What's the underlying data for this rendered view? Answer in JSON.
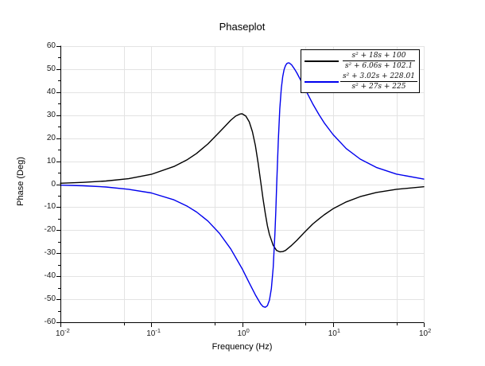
{
  "title": "Phaseplot",
  "xlabel": "Frequency (Hz)",
  "ylabel": "Phase (Deg)",
  "colors": {
    "background": "#ffffff",
    "grid": "#e3e3e3",
    "axis": "#000000",
    "series1": "#000000",
    "series2": "#0000ee"
  },
  "axes": {
    "x_scale": "log",
    "x_ticks": [
      {
        "value": 0.01,
        "label_base": "10",
        "label_exp": "-2"
      },
      {
        "value": 0.1,
        "label_base": "10",
        "label_exp": "-1"
      },
      {
        "value": 1,
        "label_base": "10",
        "label_exp": "0"
      },
      {
        "value": 10,
        "label_base": "10",
        "label_exp": "1"
      },
      {
        "value": 100,
        "label_base": "10",
        "label_exp": "2"
      }
    ],
    "x_minor_ticks": [
      0.05,
      0.5,
      5,
      50
    ],
    "y_ticks": [
      -60,
      -50,
      -40,
      -30,
      -20,
      -10,
      0,
      10,
      20,
      30,
      40,
      50,
      60
    ],
    "y_minor_ticks": [
      -55,
      -45,
      -35,
      -25,
      -15,
      -5,
      5,
      15,
      25,
      35,
      45,
      55
    ],
    "xlim": [
      0.01,
      100
    ],
    "ylim": [
      -60,
      60
    ]
  },
  "legend": {
    "entries": [
      {
        "numerator": "s² + 18s + 100",
        "denominator": "s² + 6.06s + 102.1",
        "color": "#000000"
      },
      {
        "numerator": "s² + 3.02s + 228.01",
        "denominator": "s² + 27s + 225",
        "color": "#0000ee"
      }
    ]
  },
  "chart_data": {
    "type": "line",
    "title": "Phaseplot",
    "xlabel": "Frequency (Hz)",
    "ylabel": "Phase (Deg)",
    "x_scale": "log",
    "xlim": [
      0.01,
      100
    ],
    "ylim": [
      -60,
      60
    ],
    "grid": true,
    "legend_position": "top-right",
    "series": [
      {
        "name": "(s²+18s+100)/(s²+6.06s+102.1)",
        "color": "#000000",
        "points": [
          [
            0.01,
            0.4
          ],
          [
            0.0178,
            0.8
          ],
          [
            0.0316,
            1.4
          ],
          [
            0.0562,
            2.4
          ],
          [
            0.1,
            4.3
          ],
          [
            0.178,
            7.7
          ],
          [
            0.25,
            10.7
          ],
          [
            0.316,
            13.4
          ],
          [
            0.42,
            17.5
          ],
          [
            0.562,
            22.6
          ],
          [
            0.65,
            25.2
          ],
          [
            0.75,
            27.8
          ],
          [
            0.85,
            29.6
          ],
          [
            0.95,
            30.5
          ],
          [
            1.0,
            30.6
          ],
          [
            1.1,
            29.6
          ],
          [
            1.2,
            27.1
          ],
          [
            1.3,
            22.8
          ],
          [
            1.4,
            16.8
          ],
          [
            1.5,
            9.3
          ],
          [
            1.6,
            1.3
          ],
          [
            1.7,
            -6.3
          ],
          [
            1.8,
            -12.8
          ],
          [
            1.9,
            -18.0
          ],
          [
            2.0,
            -21.9
          ],
          [
            2.2,
            -26.6
          ],
          [
            2.4,
            -28.8
          ],
          [
            2.6,
            -29.4
          ],
          [
            2.8,
            -29.3
          ],
          [
            3.0,
            -28.8
          ],
          [
            3.5,
            -26.6
          ],
          [
            4.0,
            -24.4
          ],
          [
            4.5,
            -22.3
          ],
          [
            5.0,
            -20.4
          ],
          [
            6.0,
            -17.3
          ],
          [
            7.0,
            -15.1
          ],
          [
            8.0,
            -13.3
          ],
          [
            10,
            -10.7
          ],
          [
            14,
            -7.7
          ],
          [
            20,
            -5.4
          ],
          [
            30,
            -3.6
          ],
          [
            50,
            -2.2
          ],
          [
            100,
            -1.1
          ]
        ]
      },
      {
        "name": "(s²+3.02s+228.01)/(s²+27s+225)",
        "color": "#0000ee",
        "points": [
          [
            0.01,
            -0.4
          ],
          [
            0.0178,
            -0.7
          ],
          [
            0.0316,
            -1.2
          ],
          [
            0.0562,
            -2.2
          ],
          [
            0.1,
            -3.8
          ],
          [
            0.178,
            -6.8
          ],
          [
            0.25,
            -9.6
          ],
          [
            0.316,
            -12.1
          ],
          [
            0.42,
            -16.0
          ],
          [
            0.562,
            -21.3
          ],
          [
            0.75,
            -28.1
          ],
          [
            1.0,
            -36.7
          ],
          [
            1.2,
            -42.9
          ],
          [
            1.4,
            -48.1
          ],
          [
            1.6,
            -52.0
          ],
          [
            1.7,
            -53.2
          ],
          [
            1.8,
            -53.5
          ],
          [
            1.9,
            -52.8
          ],
          [
            2.0,
            -50.4
          ],
          [
            2.1,
            -45.4
          ],
          [
            2.2,
            -36.3
          ],
          [
            2.3,
            -21.3
          ],
          [
            2.35,
            -11.7
          ],
          [
            2.4,
            -1.1
          ],
          [
            2.45,
            9.3
          ],
          [
            2.5,
            18.6
          ],
          [
            2.6,
            32.8
          ],
          [
            2.7,
            41.6
          ],
          [
            2.8,
            46.8
          ],
          [
            2.9,
            49.8
          ],
          [
            3.0,
            51.5
          ],
          [
            3.1,
            52.4
          ],
          [
            3.2,
            52.7
          ],
          [
            3.3,
            52.7
          ],
          [
            3.5,
            51.9
          ],
          [
            3.8,
            49.9
          ],
          [
            4.0,
            48.4
          ],
          [
            4.5,
            44.6
          ],
          [
            5.0,
            40.9
          ],
          [
            6.0,
            34.9
          ],
          [
            7.0,
            30.3
          ],
          [
            8.0,
            26.7
          ],
          [
            10,
            21.6
          ],
          [
            14,
            15.5
          ],
          [
            20,
            10.9
          ],
          [
            30,
            7.3
          ],
          [
            50,
            4.4
          ],
          [
            100,
            2.2
          ]
        ]
      }
    ]
  }
}
